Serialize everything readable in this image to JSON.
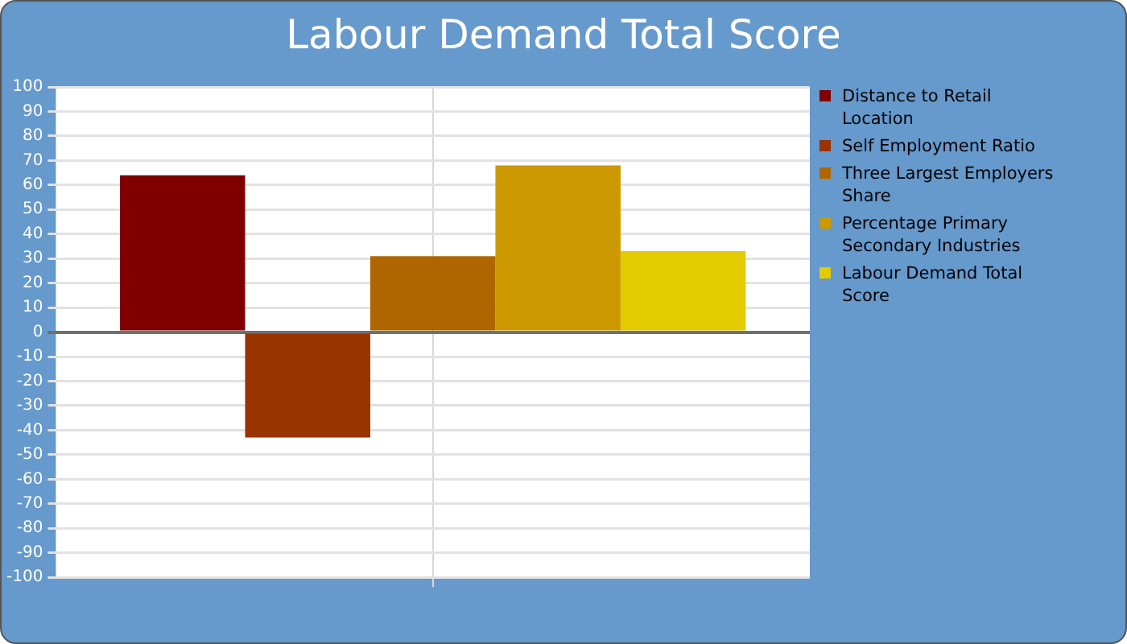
{
  "chart_data": {
    "type": "bar",
    "title": "Labour Demand Total Score",
    "categories": [
      null
    ],
    "series": [
      {
        "name": "Distance to Retail Location",
        "color": "#800000",
        "values": [
          64
        ]
      },
      {
        "name": "Self Employment Ratio",
        "color": "#993300",
        "values": [
          -43
        ]
      },
      {
        "name": "Three Largest Employers Share",
        "color": "#b06600",
        "values": [
          31
        ]
      },
      {
        "name": "Percentage Primary Secondary Industries",
        "color": "#cc9900",
        "values": [
          68
        ]
      },
      {
        "name": "Labour Demand Total Score",
        "color": "#e3cb00",
        "values": [
          33
        ]
      }
    ],
    "ylim": [
      -100,
      100
    ],
    "yticks": [
      -100,
      -90,
      -80,
      -70,
      -60,
      -50,
      -40,
      -30,
      -20,
      -10,
      0,
      10,
      20,
      30,
      40,
      50,
      60,
      70,
      80,
      90,
      100
    ],
    "grid": true,
    "legend": "right"
  }
}
